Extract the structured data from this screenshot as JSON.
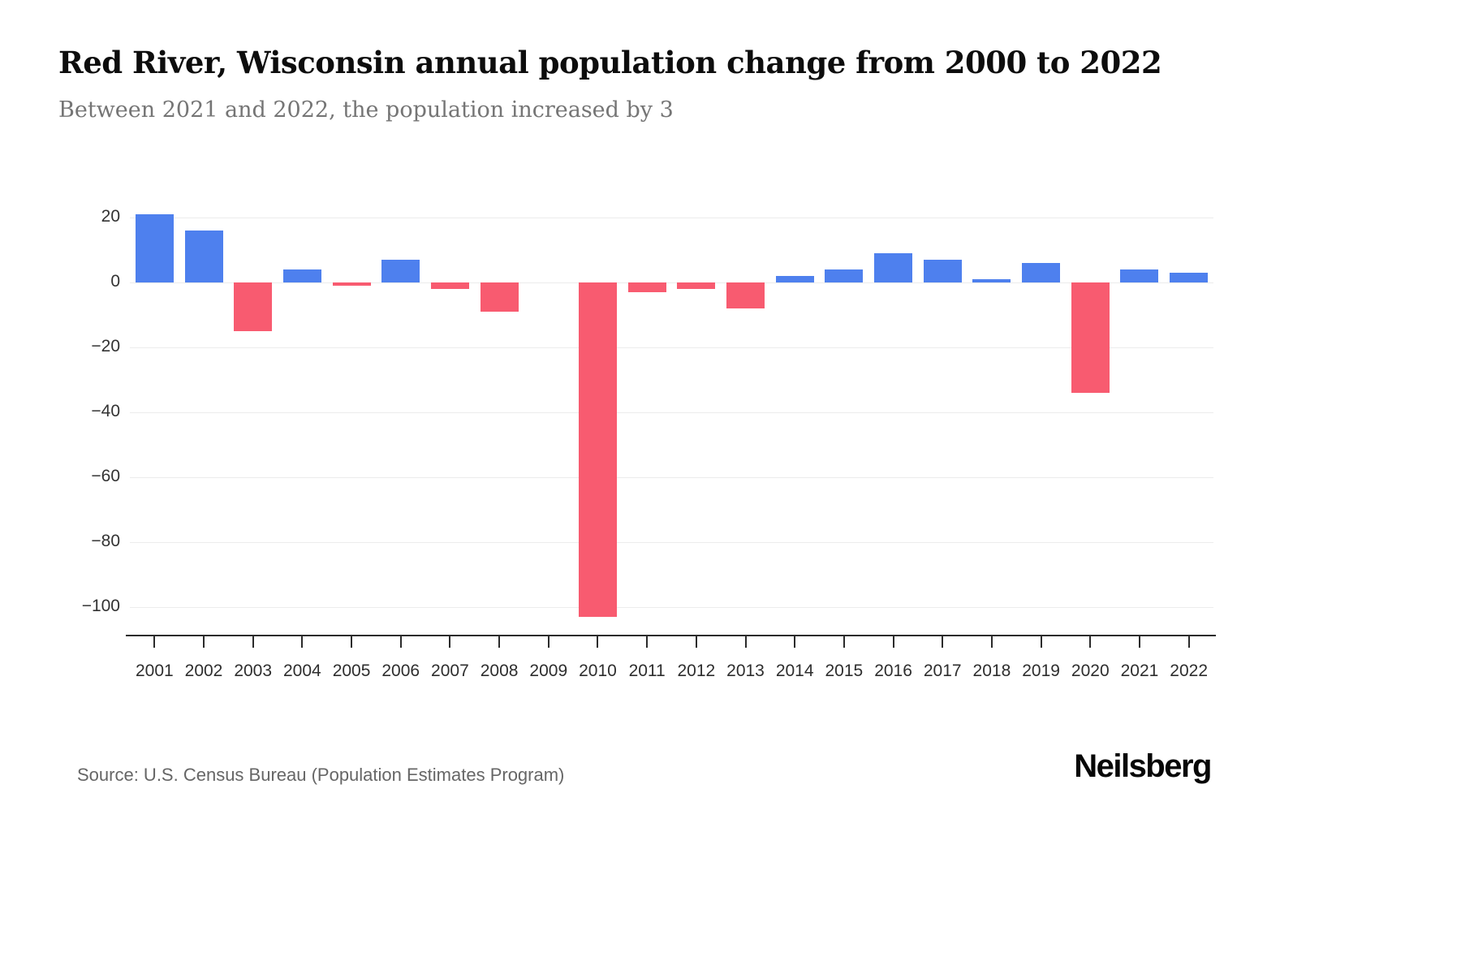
{
  "page": {
    "title": "Red River, Wisconsin annual population change from 2000 to 2022",
    "subtitle": "Between 2021 and 2022, the population increased by 3",
    "source": "Source: U.S. Census Bureau (Population Estimates Program)",
    "brand": "Neilsberg"
  },
  "colors": {
    "positive_bar": "#4e80ee",
    "negative_bar": "#f85b70",
    "gridline": "#ececec",
    "axis_line": "#2b2b2b"
  },
  "chart_data": {
    "type": "bar",
    "title": "Red River, Wisconsin annual population change from 2000 to 2022",
    "subtitle": "Between 2021 and 2022, the population increased by 3",
    "xlabel": "",
    "ylabel": "",
    "categories": [
      2001,
      2002,
      2003,
      2004,
      2005,
      2006,
      2007,
      2008,
      2009,
      2010,
      2011,
      2012,
      2013,
      2014,
      2015,
      2016,
      2017,
      2018,
      2019,
      2020,
      2021,
      2022
    ],
    "values": [
      21,
      16,
      -15,
      4,
      -1,
      7,
      -2,
      -9,
      0,
      -103,
      -3,
      -2,
      -8,
      2,
      4,
      9,
      7,
      1,
      6,
      -34,
      4,
      3
    ],
    "positive_color": "#4e80ee",
    "negative_color": "#f85b70",
    "ylim": [
      -108,
      25
    ],
    "yticks": [
      20,
      0,
      -20,
      -40,
      -60,
      -80,
      -100
    ],
    "grid": true,
    "legend": "none"
  }
}
